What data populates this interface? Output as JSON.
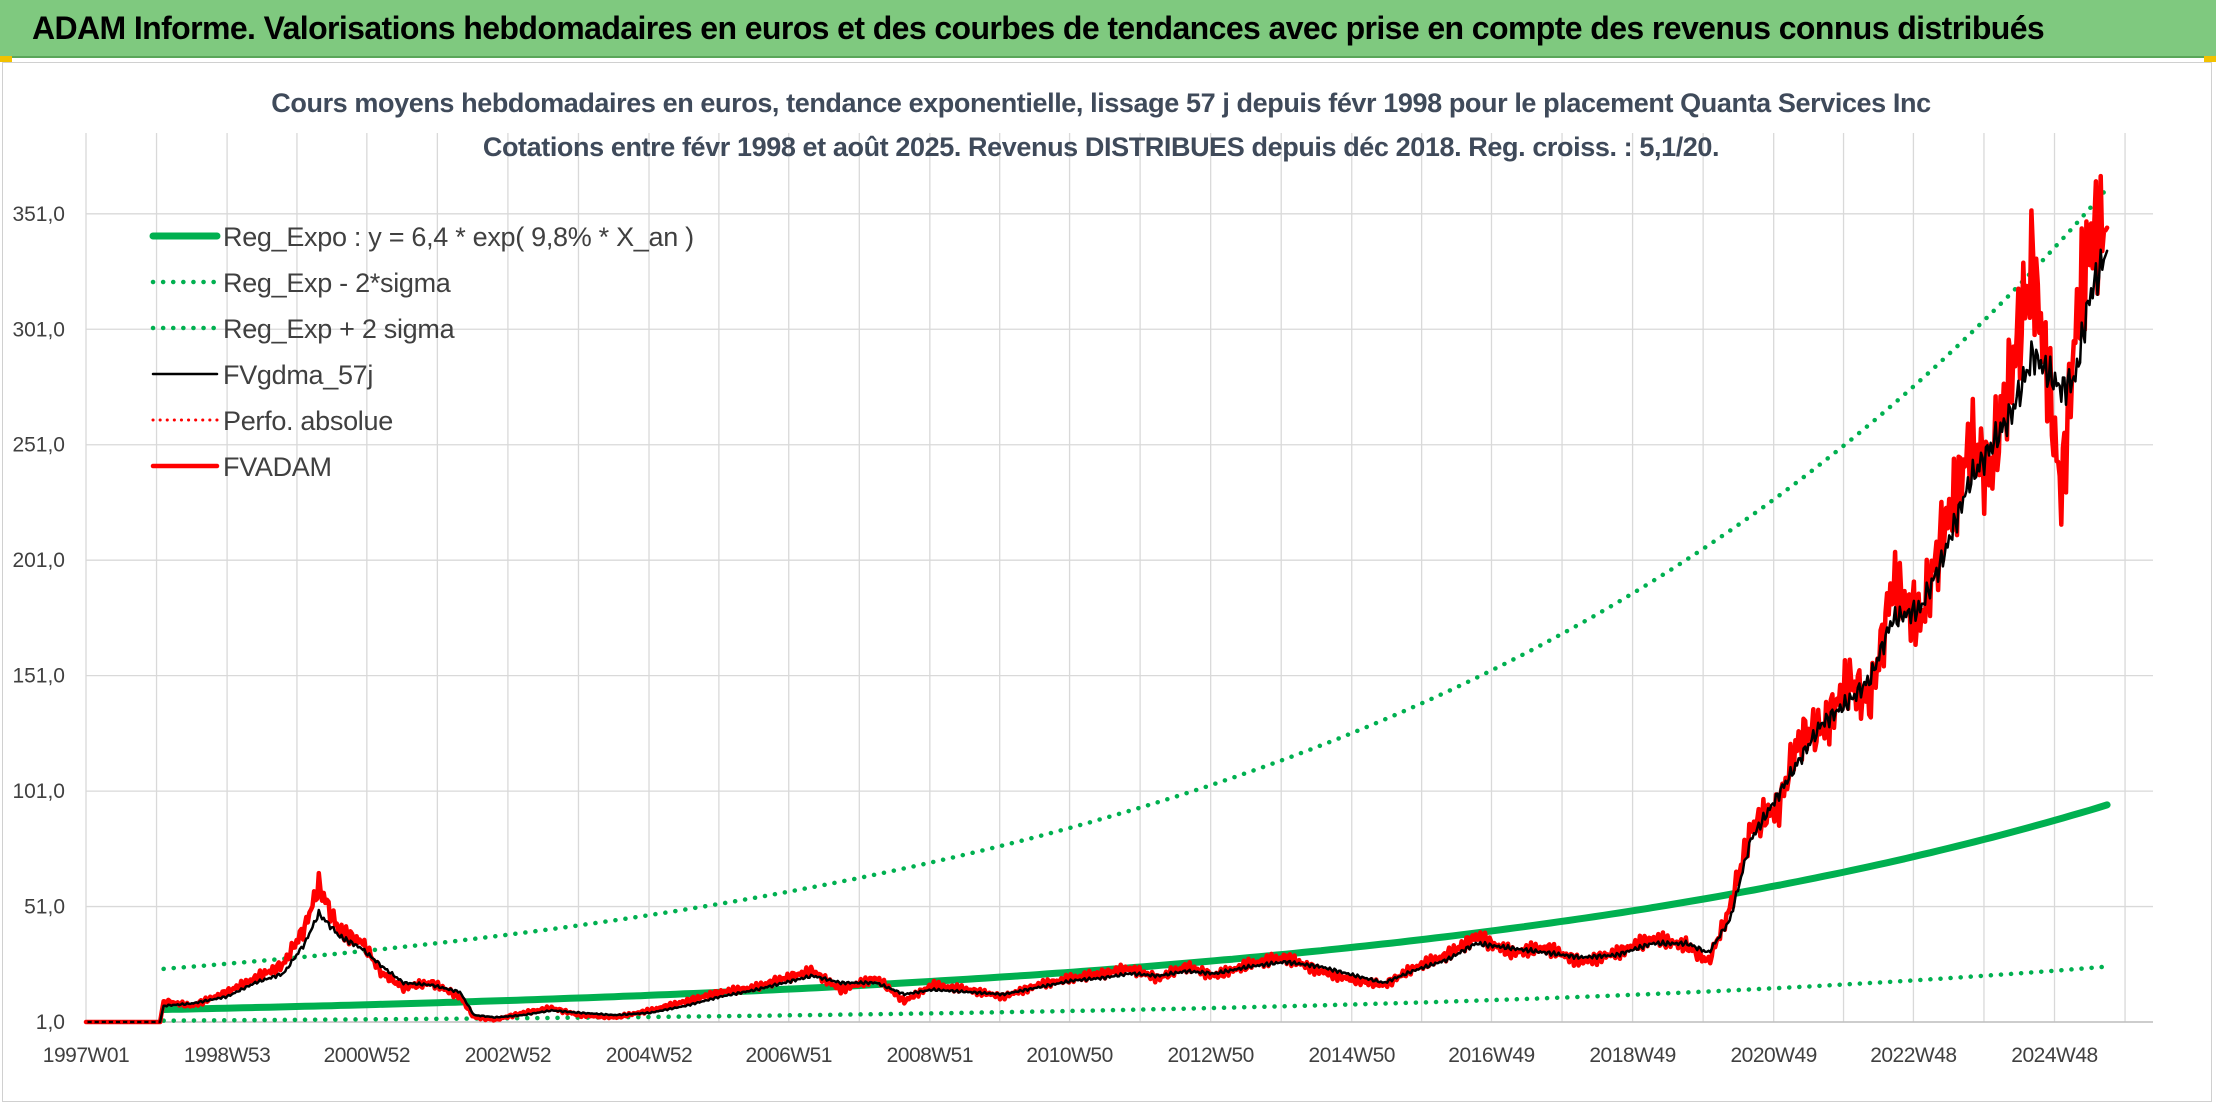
{
  "header": {
    "title": "ADAM Informe. Valorisations hebdomadaires en euros et des courbes de tendances avec prise en compte des revenus connus distribués"
  },
  "colors": {
    "header_bg": "#7fc97f",
    "regression": "#00b050",
    "smoothed": "#000000",
    "adam": "#ff0000",
    "grid": "#d9d9d9"
  },
  "chart_data": {
    "type": "line",
    "title": "Cours moyens hebdomadaires en euros, tendance exponentielle, lissage 57 j depuis févr 1998 pour le placement Quanta Services Inc",
    "subtitle": "Cotations entre févr 1998 et août 2025. Revenus DISTRIBUES depuis déc 2018. Reg. croiss. : 5,1/20.",
    "xlabel": "",
    "ylabel": "",
    "y_ticks": [
      "1,0",
      "51,0",
      "101,0",
      "151,0",
      "201,0",
      "251,0",
      "301,0",
      "351,0"
    ],
    "y_tick_values": [
      1,
      51,
      101,
      151,
      201,
      251,
      301,
      351
    ],
    "ylim": [
      1,
      386
    ],
    "x_ticks": [
      "1997W01",
      "1998W53",
      "2000W52",
      "2002W52",
      "2004W52",
      "2006W51",
      "2008W51",
      "2010W50",
      "2012W50",
      "2014W50",
      "2016W49",
      "2018W49",
      "2020W49",
      "2022W48",
      "2024W48"
    ],
    "xlim": [
      1997.0,
      2026.3
    ],
    "grid": true,
    "legend_position": "top-left",
    "series": [
      {
        "name": "Reg_Expo : y = 6,4 * exp( 9,8% *  X_an )",
        "style": "solid",
        "color": "#00b050",
        "x": [
          1998.1,
          2000,
          2002,
          2004,
          2006,
          2008,
          2010,
          2012,
          2014,
          2016,
          2018,
          2020,
          2022,
          2024,
          2025.65
        ],
        "y": [
          6.4,
          7.7,
          9.3,
          11.3,
          13.7,
          16.6,
          20.2,
          24.5,
          29.7,
          36.1,
          43.8,
          53.3,
          64.7,
          80.0,
          95.0
        ]
      },
      {
        "name": "Reg_Exp - 2*sigma",
        "style": "dotted",
        "color": "#00b050",
        "x": [
          1998.1,
          2000,
          2002,
          2004,
          2006,
          2008,
          2010,
          2012,
          2014,
          2016,
          2018,
          2020,
          2022,
          2024,
          2025.65
        ],
        "y": [
          1.6,
          1.9,
          2.4,
          2.9,
          3.5,
          4.3,
          5.3,
          6.5,
          8.0,
          9.8,
          11.9,
          14.4,
          17.5,
          21.3,
          25.0
        ]
      },
      {
        "name": "Reg_Exp + 2 sigma",
        "style": "dotted",
        "color": "#00b050",
        "x": [
          1998.1,
          2000,
          2002,
          2004,
          2006,
          2008,
          2010,
          2012,
          2014,
          2016,
          2018,
          2020,
          2022,
          2024,
          2025.65
        ],
        "y": [
          24.0,
          29.0,
          35.5,
          43.0,
          52.5,
          64.0,
          78.0,
          95.0,
          115.0,
          140.0,
          170.0,
          207.0,
          252.0,
          307.0,
          362.0
        ]
      },
      {
        "name": "FVgdma_57j",
        "style": "solid",
        "color": "#000000",
        "x": [
          1997.0,
          1998.05,
          1998.1,
          1998.5,
          1999.0,
          1999.4,
          1999.8,
          2000.1,
          2000.3,
          2000.6,
          2000.9,
          2001.2,
          2001.5,
          2001.9,
          2002.3,
          2002.5,
          2002.8,
          2003.2,
          2003.6,
          2004.0,
          2004.5,
          2005.0,
          2005.5,
          2006.0,
          2006.5,
          2006.9,
          2007.3,
          2007.7,
          2008.2,
          2008.6,
          2009.0,
          2009.5,
          2010.0,
          2010.5,
          2011.0,
          2011.4,
          2011.8,
          2012.2,
          2012.6,
          2013.0,
          2013.5,
          2014.0,
          2014.5,
          2015.0,
          2015.4,
          2015.8,
          2016.3,
          2016.7,
          2017.2,
          2017.7,
          2018.2,
          2018.7,
          2019.2,
          2019.7,
          2020.0,
          2020.3,
          2020.6,
          2021.0,
          2021.3,
          2021.6,
          2022.0,
          2022.3,
          2022.6,
          2023.0,
          2023.3,
          2023.7,
          2024.0,
          2024.3,
          2024.6,
          2025.0,
          2025.2,
          2025.4,
          2025.65
        ],
        "y": [
          1,
          1,
          8,
          9,
          12,
          18,
          22,
          35,
          48,
          38,
          33,
          25,
          18,
          17,
          14,
          4,
          3,
          4,
          6,
          5,
          4,
          5,
          8,
          12,
          15,
          18,
          21,
          18,
          18,
          13,
          15,
          14,
          13,
          16,
          19,
          20,
          22,
          21,
          23,
          22,
          25,
          27,
          25,
          21,
          18,
          23,
          28,
          35,
          33,
          31,
          29,
          30,
          35,
          35,
          31,
          45,
          80,
          100,
          115,
          130,
          140,
          150,
          175,
          180,
          200,
          235,
          250,
          265,
          290,
          275,
          280,
          315,
          335
        ]
      },
      {
        "name": "Perfo. absolue",
        "style": "dotted",
        "color": "#ff0000",
        "x": [
          1997.0,
          1998.05
        ],
        "y": [
          1,
          1
        ]
      },
      {
        "name": "FVADAM",
        "style": "solid",
        "color": "#ff0000",
        "x": [
          1997.0,
          1998.05,
          1998.1,
          1998.5,
          1999.0,
          1999.4,
          1999.8,
          2000.1,
          2000.3,
          2000.6,
          2000.9,
          2001.2,
          2001.5,
          2001.9,
          2002.3,
          2002.5,
          2002.8,
          2003.2,
          2003.6,
          2004.0,
          2004.5,
          2005.0,
          2005.5,
          2006.0,
          2006.5,
          2006.9,
          2007.3,
          2007.7,
          2008.2,
          2008.6,
          2009.0,
          2009.5,
          2010.0,
          2010.5,
          2011.0,
          2011.4,
          2011.8,
          2012.2,
          2012.6,
          2013.0,
          2013.5,
          2014.0,
          2014.5,
          2015.0,
          2015.4,
          2015.8,
          2016.3,
          2016.7,
          2017.2,
          2017.7,
          2018.2,
          2018.7,
          2019.2,
          2019.7,
          2020.0,
          2020.3,
          2020.6,
          2021.0,
          2021.3,
          2021.6,
          2022.0,
          2022.3,
          2022.6,
          2023.0,
          2023.3,
          2023.7,
          2024.0,
          2024.3,
          2024.6,
          2025.0,
          2025.2,
          2025.4,
          2025.65
        ],
        "y": [
          1,
          1,
          10,
          8,
          14,
          20,
          26,
          42,
          60,
          40,
          36,
          22,
          16,
          18,
          12,
          3,
          2,
          5,
          7,
          4,
          3,
          6,
          10,
          14,
          16,
          20,
          23,
          15,
          20,
          10,
          17,
          15,
          12,
          17,
          20,
          22,
          24,
          20,
          25,
          21,
          26,
          29,
          23,
          19,
          17,
          24,
          30,
          38,
          31,
          33,
          27,
          31,
          37,
          34,
          27,
          50,
          85,
          95,
          125,
          128,
          148,
          140,
          190,
          175,
          210,
          250,
          240,
          285,
          330,
          230,
          300,
          340,
          345
        ]
      }
    ]
  }
}
